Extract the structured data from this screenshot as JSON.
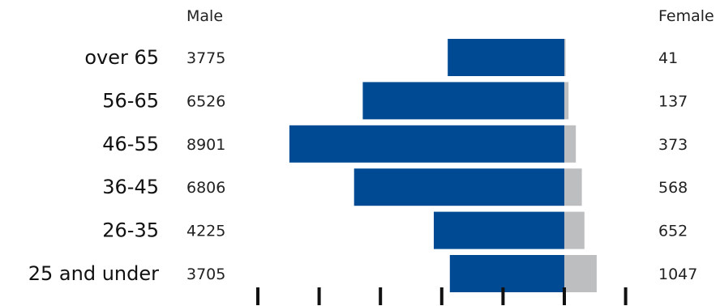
{
  "chart_data": {
    "type": "bar",
    "orientation": "horizontal",
    "layout": "population-pyramid",
    "categories": [
      "over 65",
      "56-65",
      "46-55",
      "36-45",
      "26-35",
      "25 and under"
    ],
    "series": [
      {
        "name": "Male",
        "color": "#004a93",
        "values": [
          3775,
          6526,
          8901,
          6806,
          4225,
          3705
        ],
        "labels": [
          "3775",
          "6526",
          "8901",
          "6806",
          "4225",
          "3705"
        ]
      },
      {
        "name": "Female",
        "color": "#bcbec0",
        "values": [
          41,
          137,
          373,
          568,
          652,
          1047
        ],
        "labels": [
          "41",
          "137",
          "373",
          "568",
          "652",
          "1047"
        ]
      }
    ],
    "axis_ticks": 7,
    "grid": false,
    "legend": "top, as column headers"
  }
}
